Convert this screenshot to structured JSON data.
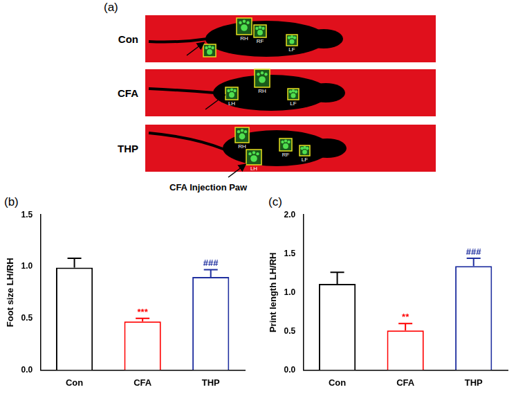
{
  "panel_a": {
    "panel_label": "(a)",
    "rows": [
      {
        "label": "Con",
        "paws": [
          null,
          "RH",
          "RF",
          "LF"
        ]
      },
      {
        "label": "CFA",
        "paws": [
          "LH",
          "RH",
          "LF"
        ]
      },
      {
        "label": "THP",
        "paws": [
          "RH",
          "LH",
          "RF",
          "LF"
        ]
      }
    ],
    "annotation": "CFA Injection Paw"
  },
  "panel_labels": [
    "(b)",
    "(c)"
  ],
  "chart_data": [
    {
      "type": "bar",
      "y_label": "Foot size LH/RH",
      "categories": [
        "Con",
        "CFA",
        "THP"
      ],
      "values": [
        0.99,
        0.47,
        0.9
      ],
      "errors": [
        0.09,
        0.03,
        0.07
      ],
      "colors": [
        "#000000",
        "#ff0000",
        "#1f2f9f"
      ],
      "ylim": [
        0,
        1.5
      ],
      "yticks": [
        {
          "value": 0,
          "label": "0.0"
        },
        {
          "value": 0.5,
          "label": "0.5"
        },
        {
          "value": 1,
          "label": "1.0"
        },
        {
          "value": 1.5,
          "label": "1.5"
        }
      ],
      "grid": false,
      "annotations": [
        {
          "category": "CFA",
          "text": "***",
          "color": "#ff0000"
        },
        {
          "category": "THP",
          "text": "###",
          "color": "#1f2f9f"
        }
      ]
    },
    {
      "type": "bar",
      "y_label": "Print length LH/RH",
      "categories": [
        "Con",
        "CFA",
        "THP"
      ],
      "values": [
        1.11,
        0.51,
        1.34
      ],
      "errors": [
        0.15,
        0.09,
        0.1
      ],
      "colors": [
        "#000000",
        "#ff0000",
        "#1f2f9f"
      ],
      "ylim": [
        0,
        2.0
      ],
      "yticks": [
        {
          "value": 0,
          "label": "0.0"
        },
        {
          "value": 0.5,
          "label": "0.5"
        },
        {
          "value": 1,
          "label": "1.0"
        },
        {
          "value": 1.5,
          "label": "1.5"
        },
        {
          "value": 2,
          "label": "2.0"
        }
      ],
      "grid": false,
      "annotations": [
        {
          "category": "CFA",
          "text": "**",
          "color": "#ff0000"
        },
        {
          "category": "THP",
          "text": "###",
          "color": "#1f2f9f"
        }
      ]
    }
  ]
}
